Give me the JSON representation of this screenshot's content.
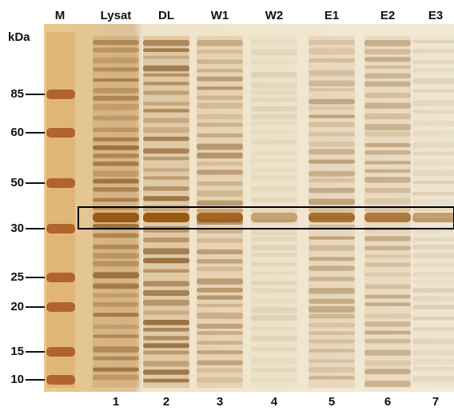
{
  "lanes": [
    "M",
    "Lysat",
    "DL",
    "W1",
    "W2",
    "E1",
    "E2",
    "E3"
  ],
  "kda_label": "kDa",
  "markers": [
    85,
    60,
    50,
    30,
    25,
    20,
    15,
    10
  ],
  "lane_numbers": [
    1,
    2,
    3,
    4,
    5,
    6,
    7
  ]
}
